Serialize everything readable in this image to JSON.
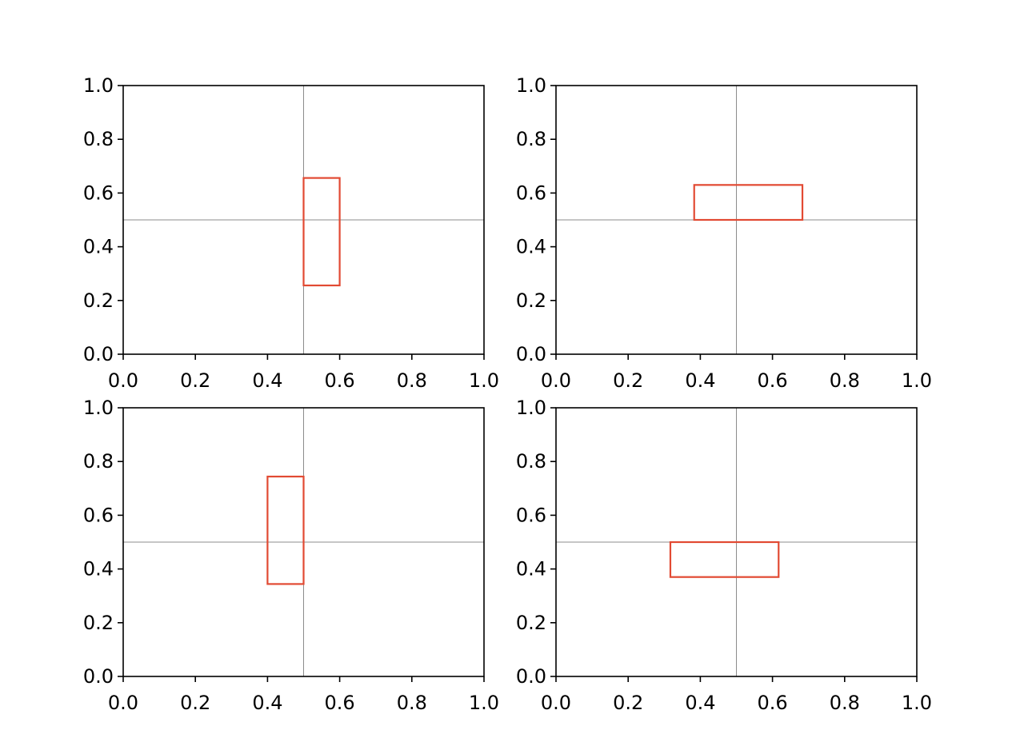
{
  "figure": {
    "background": "#ffffff",
    "axis_color": "#000000",
    "refline_color": "#8c8c8c",
    "rect_color": "#e24a33"
  },
  "chart_data": [
    {
      "type": "rectangle",
      "title": "",
      "xlabel": "",
      "ylabel": "",
      "xlim": [
        0,
        1
      ],
      "ylim": [
        0,
        1
      ],
      "xticks": [
        "0.0",
        "0.2",
        "0.4",
        "0.6",
        "0.8",
        "1.0"
      ],
      "yticks": [
        "0.0",
        "0.2",
        "0.4",
        "0.6",
        "0.8",
        "1.0"
      ],
      "grid": false,
      "reference_lines": {
        "x": 0.5,
        "y": 0.5
      },
      "rectangle": {
        "x": 0.5,
        "y": 0.256,
        "width": 0.1,
        "height": 0.4
      }
    },
    {
      "type": "rectangle",
      "title": "",
      "xlabel": "",
      "ylabel": "",
      "xlim": [
        0,
        1
      ],
      "ylim": [
        0,
        1
      ],
      "xticks": [
        "0.0",
        "0.2",
        "0.4",
        "0.6",
        "0.8",
        "1.0"
      ],
      "yticks": [
        "0.0",
        "0.2",
        "0.4",
        "0.6",
        "0.8",
        "1.0"
      ],
      "grid": false,
      "reference_lines": {
        "x": 0.5,
        "y": 0.5
      },
      "rectangle": {
        "x": 0.383,
        "y": 0.5,
        "width": 0.3,
        "height": 0.13
      }
    },
    {
      "type": "rectangle",
      "title": "",
      "xlabel": "",
      "ylabel": "",
      "xlim": [
        0,
        1
      ],
      "ylim": [
        0,
        1
      ],
      "xticks": [
        "0.0",
        "0.2",
        "0.4",
        "0.6",
        "0.8",
        "1.0"
      ],
      "yticks": [
        "0.0",
        "0.2",
        "0.4",
        "0.6",
        "0.8",
        "1.0"
      ],
      "grid": false,
      "reference_lines": {
        "x": 0.5,
        "y": 0.5
      },
      "rectangle": {
        "x": 0.4,
        "y": 0.344,
        "width": 0.1,
        "height": 0.4
      }
    },
    {
      "type": "rectangle",
      "title": "",
      "xlabel": "",
      "ylabel": "",
      "xlim": [
        0,
        1
      ],
      "ylim": [
        0,
        1
      ],
      "xticks": [
        "0.0",
        "0.2",
        "0.4",
        "0.6",
        "0.8",
        "1.0"
      ],
      "yticks": [
        "0.0",
        "0.2",
        "0.4",
        "0.6",
        "0.8",
        "1.0"
      ],
      "grid": false,
      "reference_lines": {
        "x": 0.5,
        "y": 0.5
      },
      "rectangle": {
        "x": 0.317,
        "y": 0.37,
        "width": 0.3,
        "height": 0.13
      }
    }
  ]
}
